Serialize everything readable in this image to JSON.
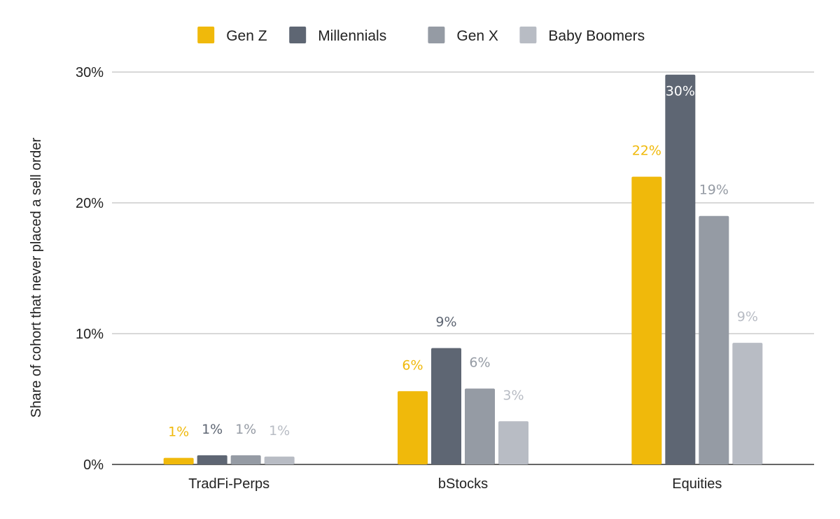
{
  "chart_data": {
    "type": "bar",
    "title": "",
    "xlabel": "",
    "ylabel": "Share of cohort that never placed a sell order",
    "ylim": [
      0,
      30
    ],
    "yticks": [
      {
        "value": 0,
        "label": "0%"
      },
      {
        "value": 10,
        "label": "10%"
      },
      {
        "value": 20,
        "label": "20%"
      },
      {
        "value": 30,
        "label": "30%"
      }
    ],
    "grid": true,
    "legend_position": "top-center",
    "categories": [
      "TradFi-Perps",
      "bStocks",
      "Equities"
    ],
    "series": [
      {
        "name": "Gen Z",
        "color": "#F0B90B",
        "values": [
          0.5,
          5.6,
          22.0
        ],
        "labels": [
          "1%",
          "6%",
          "22%"
        ],
        "label_color": "#F0B90B"
      },
      {
        "name": "Millennials",
        "color": "#5E6673",
        "values": [
          0.7,
          8.9,
          29.8
        ],
        "labels": [
          "1%",
          "9%",
          "30%"
        ],
        "label_color": "#5E6673"
      },
      {
        "name": "Gen X",
        "color": "#959BA4",
        "values": [
          0.7,
          5.8,
          19.0
        ],
        "labels": [
          "1%",
          "6%",
          "19%"
        ],
        "label_color": "#959BA4"
      },
      {
        "name": "Baby Boomers",
        "color": "#B8BCC4",
        "values": [
          0.6,
          3.3,
          9.3
        ],
        "labels": [
          "1%",
          "3%",
          "9%"
        ],
        "label_color": "#B8BCC4"
      }
    ]
  }
}
